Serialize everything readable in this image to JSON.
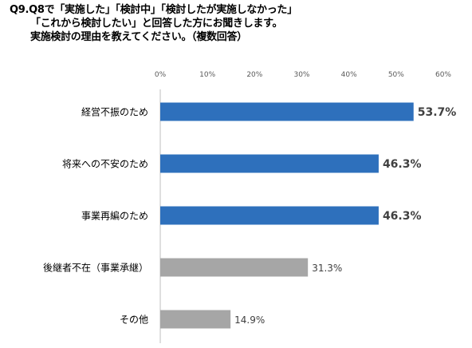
{
  "title": {
    "line1": "Q9.Q8で「実施した」「検討中」「検討したが実施しなかった」",
    "line2": "「これから検討したい」と回答した方にお聞きします。",
    "line3": "実施検討の理由を教えてください。（複数回答）"
  },
  "chart_data": {
    "type": "bar",
    "orientation": "horizontal",
    "categories": [
      "経営不振のため",
      "将来への不安のため",
      "事業再編のため",
      "後継者不在（事業承継）",
      "その他"
    ],
    "values": [
      53.7,
      46.3,
      46.3,
      31.3,
      14.9
    ],
    "value_labels": [
      "53.7%",
      "46.3%",
      "46.3%",
      "31.3%",
      "14.9%"
    ],
    "highlighted": [
      true,
      true,
      true,
      false,
      false
    ],
    "xlim": [
      0,
      60
    ],
    "ticks": [
      0,
      10,
      20,
      30,
      40,
      50,
      60
    ],
    "tick_labels": [
      "0%",
      "10%",
      "20%",
      "30%",
      "40%",
      "50%",
      "60%"
    ],
    "colors": {
      "highlight": "#2E70BC",
      "other": "#A6A6A6",
      "axis": "#BFBFBF",
      "tick_text": "#595959",
      "label_text": "#404040"
    },
    "grid": false,
    "legend": "none"
  }
}
